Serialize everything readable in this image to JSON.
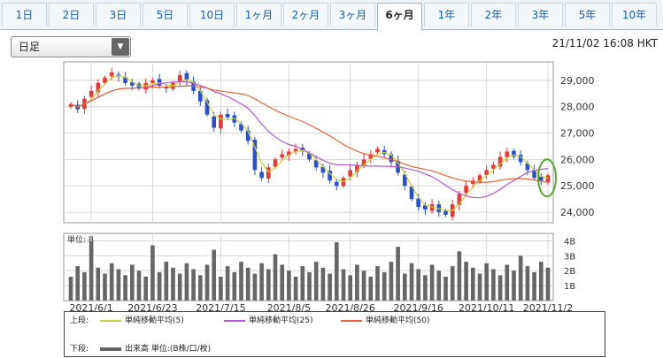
{
  "tabs": [
    {
      "label": "1日"
    },
    {
      "label": "2日"
    },
    {
      "label": "3日"
    },
    {
      "label": "5日"
    },
    {
      "label": "10日"
    },
    {
      "label": "1ヶ月"
    },
    {
      "label": "2ヶ月"
    },
    {
      "label": "3ヶ月"
    },
    {
      "label": "6ヶ月",
      "active": true
    },
    {
      "label": "1年"
    },
    {
      "label": "2年"
    },
    {
      "label": "3年"
    },
    {
      "label": "5年"
    },
    {
      "label": "10年"
    }
  ],
  "period_select": {
    "value": "日足"
  },
  "timestamp": "21/11/02 16:08 HKT",
  "legend": {
    "upper_label": "上段:",
    "lower_label": "下段:",
    "items": [
      {
        "label": "単純移動平均(5)",
        "color": "#c8d23c"
      },
      {
        "label": "単純移動平均(25)",
        "color": "#b45ad2"
      },
      {
        "label": "単純移動平均(50)",
        "color": "#e6643c"
      }
    ],
    "volume_item": {
      "label": "出来高 単位:(B株/口/枚)",
      "color": "#666666"
    }
  },
  "chart_data": {
    "type": "candlestick",
    "x_ticks": [
      "2021/6/1",
      "2021/6/23",
      "2021/7/15",
      "2021/8/5",
      "2021/8/26",
      "2021/9/16",
      "2021/10/11",
      "2021/11/2"
    ],
    "price_axis": {
      "ticks": [
        "29,000",
        "28,000",
        "27,000",
        "26,000",
        "25,000",
        "24,000"
      ],
      "ylim": [
        23600,
        29700
      ]
    },
    "volume_axis": {
      "unit_label": "単位: B",
      "ticks": [
        "4B",
        "3B",
        "2B",
        "1B"
      ],
      "ylim": [
        0,
        4.5
      ]
    },
    "grid": true,
    "price_path": [
      28100,
      27900,
      28300,
      28600,
      28900,
      29100,
      29300,
      29150,
      28900,
      28800,
      28700,
      28900,
      29000,
      28800,
      28700,
      28900,
      29200,
      29000,
      28600,
      28200,
      27700,
      27200,
      27700,
      27600,
      27400,
      27100,
      26700,
      25600,
      25300,
      25700,
      26000,
      26200,
      26300,
      26400,
      26300,
      26000,
      25700,
      25500,
      25200,
      25000,
      25300,
      25600,
      25800,
      26000,
      26200,
      26400,
      26200,
      25900,
      25500,
      25000,
      24500,
      24200,
      24100,
      24300,
      24000,
      23900,
      24300,
      24700,
      25000,
      25200,
      25400,
      25600,
      25800,
      26100,
      26300,
      26100,
      25900,
      25600,
      25300,
      25200,
      25400
    ]
  }
}
